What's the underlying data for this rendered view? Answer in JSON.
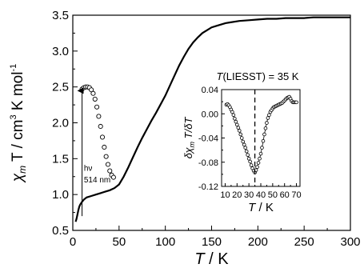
{
  "chart_data": [
    {
      "type": "scatter",
      "role": "main",
      "xlabel": {
        "sym": "T",
        "unit": " / K"
      },
      "ylabel": {
        "sym": "χ",
        "sub": "m",
        "mid": " T / cm",
        "sup1": "3",
        "mid2": " K mol",
        "sup2": "-1"
      },
      "xlim": [
        0,
        300
      ],
      "ylim": [
        0.5,
        3.5
      ],
      "xticks": [
        "0",
        "50",
        "100",
        "150",
        "200",
        "250",
        "300"
      ],
      "yticks": [
        "0.5",
        "1.0",
        "1.5",
        "2.0",
        "2.5",
        "3.0",
        "3.5"
      ],
      "grid": false,
      "series": [
        {
          "style": "solid-line",
          "x": [
            3,
            4,
            5,
            6,
            7,
            8,
            10,
            12,
            15,
            20,
            25,
            30,
            35,
            40,
            45,
            50,
            55,
            60,
            65,
            70,
            75,
            80,
            85,
            90,
            95,
            100,
            105,
            110,
            115,
            120,
            125,
            130,
            135,
            140,
            145,
            150,
            155,
            160,
            165,
            170,
            180,
            190,
            200,
            210,
            220,
            230,
            240,
            250,
            260,
            270,
            280,
            290,
            300
          ],
          "y": [
            0.62,
            0.66,
            0.72,
            0.78,
            0.83,
            0.86,
            0.9,
            0.93,
            0.96,
            0.98,
            1.0,
            1.02,
            1.04,
            1.06,
            1.09,
            1.14,
            1.25,
            1.38,
            1.52,
            1.66,
            1.79,
            1.91,
            2.03,
            2.14,
            2.26,
            2.38,
            2.52,
            2.66,
            2.8,
            2.92,
            3.03,
            3.12,
            3.19,
            3.25,
            3.29,
            3.33,
            3.35,
            3.37,
            3.39,
            3.4,
            3.42,
            3.43,
            3.44,
            3.45,
            3.45,
            3.46,
            3.46,
            3.46,
            3.47,
            3.47,
            3.47,
            3.47,
            3.47
          ]
        },
        {
          "style": "open-circles",
          "x": [
            10,
            12,
            14,
            16,
            18,
            20,
            22,
            24,
            26,
            28,
            30,
            32,
            34,
            36,
            38,
            40,
            42,
            44
          ],
          "y": [
            2.47,
            2.49,
            2.5,
            2.5,
            2.49,
            2.46,
            2.41,
            2.33,
            2.22,
            2.09,
            1.95,
            1.8,
            1.66,
            1.53,
            1.42,
            1.33,
            1.27,
            1.24
          ]
        }
      ],
      "annotations": [
        {
          "type": "arrow",
          "x": 10,
          "y_from": 0.7,
          "y_to": 2.47
        },
        {
          "type": "text",
          "text": "hν",
          "x": 12,
          "y": 1.33
        },
        {
          "type": "text",
          "text": "514 nm",
          "x": 12,
          "y": 1.17
        }
      ]
    },
    {
      "type": "scatter",
      "role": "inset",
      "title": {
        "sym": "T",
        "rest": "(LIESST) = 35 K"
      },
      "xlabel": {
        "sym": "T",
        "unit": " / K"
      },
      "ylabel": {
        "pre": "δχ",
        "sub": "m",
        "post": " T/δT"
      },
      "xlim": [
        7,
        73
      ],
      "ylim": [
        -0.12,
        0.04
      ],
      "xticks": [
        "10",
        "20",
        "30",
        "40",
        "50",
        "60",
        "70"
      ],
      "yticks": [
        "0.04",
        "0.00",
        "-0.04",
        "-0.08",
        "-0.12"
      ],
      "grid": false,
      "series": [
        {
          "style": "open-circles-line",
          "x": [
            11,
            12,
            13,
            14,
            15,
            16,
            17,
            18,
            19,
            20,
            21,
            22,
            23,
            24,
            25,
            26,
            27,
            28,
            29,
            30,
            31,
            32,
            33,
            34,
            35,
            36,
            37,
            38,
            39,
            40,
            41,
            42,
            43,
            44,
            45,
            46,
            47,
            48,
            49,
            50,
            51,
            52,
            53,
            54,
            55,
            56,
            57,
            58,
            59,
            60,
            61,
            62,
            63,
            64,
            65,
            66,
            67,
            68,
            69,
            70
          ],
          "y": [
            0.015,
            0.016,
            0.014,
            0.011,
            0.007,
            0.003,
            -0.002,
            -0.008,
            -0.013,
            -0.018,
            -0.023,
            -0.028,
            -0.034,
            -0.04,
            -0.046,
            -0.051,
            -0.056,
            -0.062,
            -0.068,
            -0.074,
            -0.079,
            -0.085,
            -0.09,
            -0.094,
            -0.097,
            -0.093,
            -0.088,
            -0.081,
            -0.074,
            -0.066,
            -0.056,
            -0.045,
            -0.034,
            -0.024,
            -0.015,
            -0.007,
            -0.002,
            0.003,
            0.006,
            0.009,
            0.011,
            0.012,
            0.013,
            0.014,
            0.015,
            0.016,
            0.017,
            0.018,
            0.02,
            0.022,
            0.024,
            0.026,
            0.027,
            0.028,
            0.025,
            0.021,
            0.019,
            0.019,
            0.019,
            0.019
          ]
        }
      ],
      "annotations": [
        {
          "type": "dashed-vline",
          "x": 35
        }
      ]
    }
  ]
}
